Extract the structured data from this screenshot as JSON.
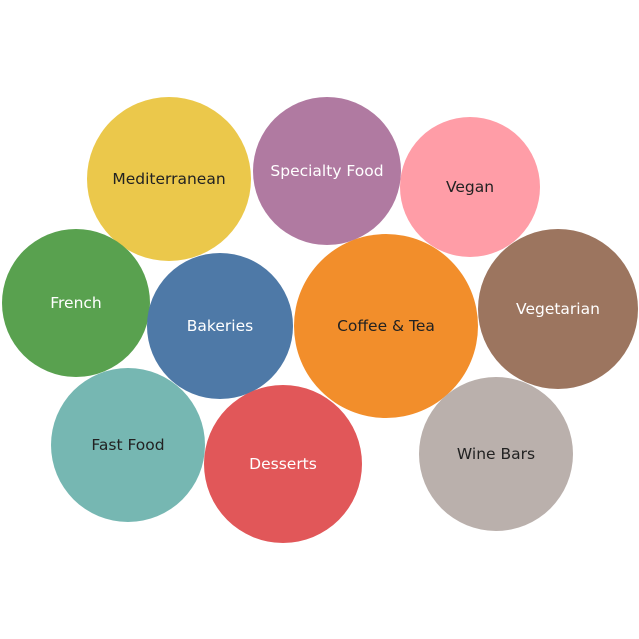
{
  "chart_data": {
    "type": "bubble",
    "bubbles": [
      {
        "label": "Mediterranean",
        "color": "#EBC84B",
        "text_color": "#222222"
      },
      {
        "label": "Specialty Food",
        "color": "#B07AA1",
        "text_color": "#ffffff"
      },
      {
        "label": "Vegan",
        "color": "#FF9DA7",
        "text_color": "#222222"
      },
      {
        "label": "French",
        "color": "#59A14F",
        "text_color": "#ffffff"
      },
      {
        "label": "Bakeries",
        "color": "#4E79A7",
        "text_color": "#ffffff"
      },
      {
        "label": "Coffee & Tea",
        "color": "#F28E2B",
        "text_color": "#222222"
      },
      {
        "label": "Vegetarian",
        "color": "#9C755F",
        "text_color": "#ffffff"
      },
      {
        "label": "Fast Food",
        "color": "#76B7B2",
        "text_color": "#222222"
      },
      {
        "label": "Desserts",
        "color": "#E15759",
        "text_color": "#ffffff"
      },
      {
        "label": "Wine Bars",
        "color": "#BAB0AC",
        "text_color": "#222222"
      }
    ]
  }
}
